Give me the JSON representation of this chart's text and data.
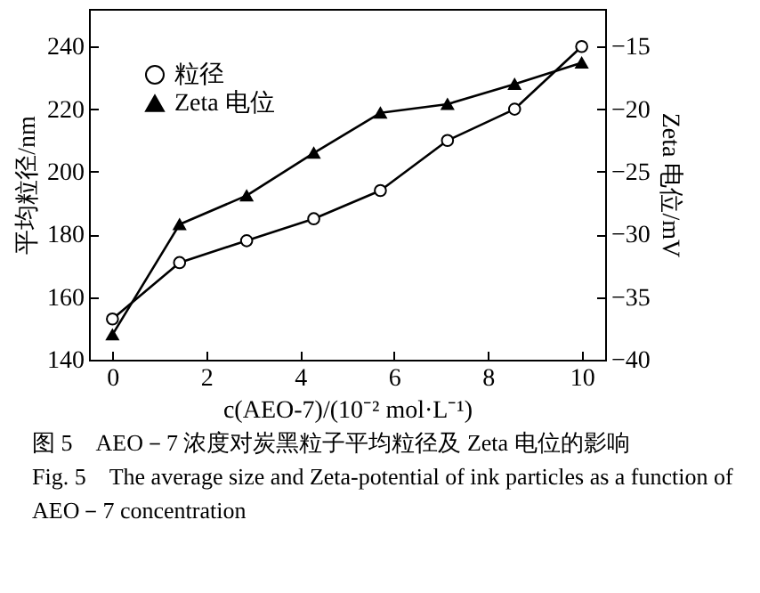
{
  "chart_data": {
    "type": "line",
    "xlabel": "c(AEO-7)/(10⁻² mol·L⁻¹)",
    "ylabel": "平均粒径/nm",
    "y2label": "Zeta 电位/mV",
    "x": [
      0,
      1.43,
      2.86,
      4.29,
      5.71,
      7.14,
      8.57,
      10
    ],
    "series": [
      {
        "name": "粒径",
        "color": "#000000",
        "marker": "circle",
        "values": [
          153,
          171,
          178,
          185,
          194,
          210,
          220,
          240
        ]
      },
      {
        "name": "Zeta 电位",
        "color": "#000000",
        "marker": "triangle",
        "axis": "y2",
        "values": [
          -38.0,
          -29.2,
          -26.9,
          -23.5,
          -20.3,
          -19.6,
          -18.0,
          -16.3
        ]
      }
    ],
    "xlim": [
      -0.5,
      10.5
    ],
    "xticks": [
      0,
      2,
      4,
      6,
      8,
      10
    ],
    "ylim": [
      140,
      252
    ],
    "yticks": [
      140,
      160,
      180,
      200,
      220,
      240
    ],
    "y2lim": [
      -40,
      -12
    ],
    "y2ticks": [
      -40,
      -35,
      -30,
      -25,
      -20,
      -15
    ],
    "legend": "top left",
    "grid": false,
    "annotations": [
      "图 5　AEO－7 浓度对炭黑粒子平均粒径及 Zeta 电位的影响",
      "Fig. 5　The average size and Zeta-potential of ink particles as a function of AEO－7 concentration"
    ]
  }
}
